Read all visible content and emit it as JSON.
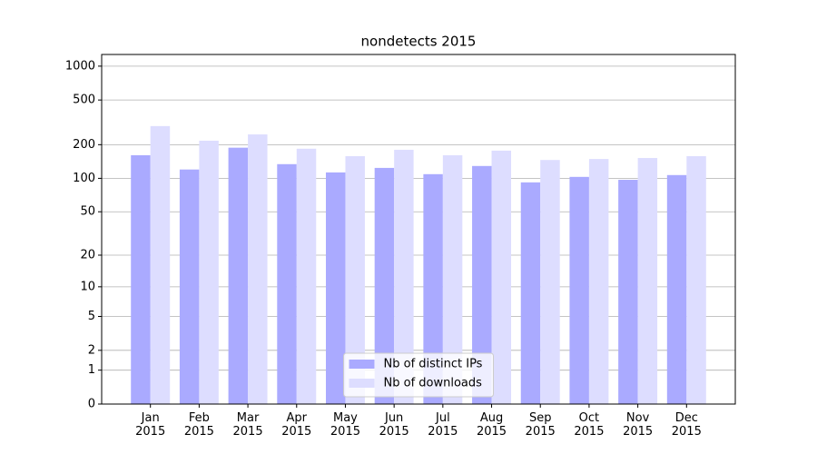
{
  "chart_data": {
    "type": "bar",
    "title": "nondetects 2015",
    "categories": [
      "Jan\n2015",
      "Feb\n2015",
      "Mar\n2015",
      "Apr\n2015",
      "May\n2015",
      "Jun\n2015",
      "Jul\n2015",
      "Aug\n2015",
      "Sep\n2015",
      "Oct\n2015",
      "Nov\n2015",
      "Dec\n2015"
    ],
    "series": [
      {
        "name": "Nb of distinct IPs",
        "color": "#aaaaff",
        "values": [
          161,
          120,
          188,
          134,
          113,
          124,
          109,
          129,
          92,
          103,
          97,
          107
        ]
      },
      {
        "name": "Nb of downloads",
        "color": "#ddddff",
        "values": [
          293,
          217,
          247,
          184,
          158,
          180,
          161,
          177,
          146,
          149,
          152,
          158
        ]
      }
    ],
    "yscale": "log1p",
    "ylim": [
      0,
      1270
    ],
    "yticks": [
      0,
      1,
      2,
      5,
      10,
      20,
      50,
      100,
      200,
      500,
      1000
    ],
    "grid": true,
    "legend": "lower center"
  }
}
